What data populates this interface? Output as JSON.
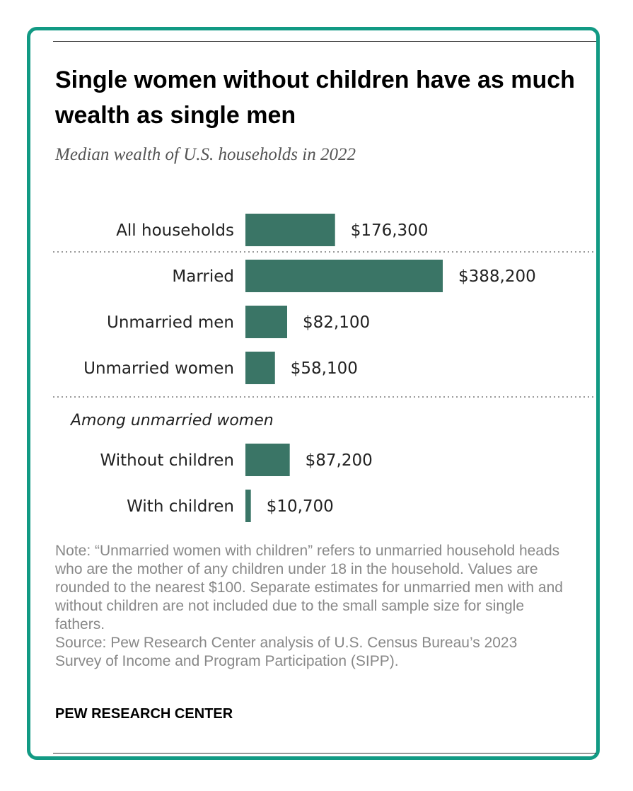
{
  "header": {
    "title": "Single women without children have as much wealth as single men",
    "subtitle": "Median wealth of U.S. households in 2022"
  },
  "chart_data": {
    "type": "bar",
    "orientation": "horizontal",
    "bar_color": "#3a7566",
    "categories": [
      "All households",
      "Married",
      "Unmarried men",
      "Unmarried women",
      "Without children",
      "With children"
    ],
    "values": [
      176300,
      388200,
      82100,
      58100,
      87200,
      10700
    ],
    "value_labels": [
      "$176,300",
      "$388,200",
      "$82,100",
      "$58,100",
      "$87,200",
      "$10,700"
    ],
    "group_label": "Among unmarried women",
    "xlim": [
      0,
      388200
    ],
    "grid": false,
    "legend": "none"
  },
  "footer": {
    "note": "Note: “Unmarried women with children” refers to unmarried household heads who are the mother of any children under 18 in the household. Values are rounded to the nearest $100. Separate estimates for unmarried men with and without children are not included due to the small sample size for single fathers.",
    "source": "Source: Pew Research Center analysis of U.S. Census Bureau’s 2023 Survey of Income and Program Participation (SIPP).",
    "brand": "PEW RESEARCH CENTER"
  },
  "colors": {
    "frame": "#129a84",
    "bar": "#3a7566",
    "note_text": "#888888"
  }
}
